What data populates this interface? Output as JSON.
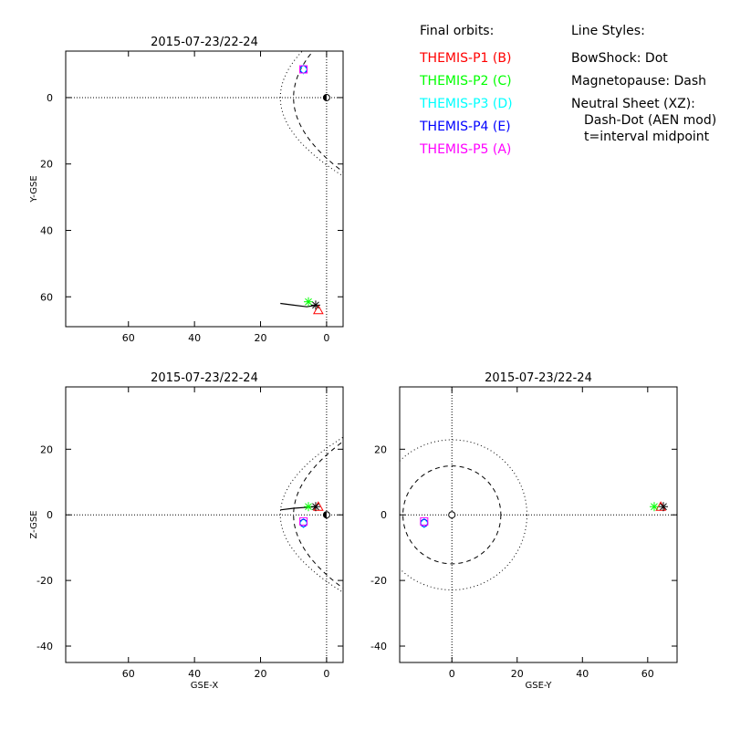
{
  "legend": {
    "orbits_heading": "Final orbits:",
    "styles_heading": "Line Styles:",
    "probes": [
      {
        "label": "THEMIS-P1 (B)",
        "color": "#ff0000"
      },
      {
        "label": "THEMIS-P2 (C)",
        "color": "#00ff00"
      },
      {
        "label": "THEMIS-P3 (D)",
        "color": "#00ffff"
      },
      {
        "label": "THEMIS-P4 (E)",
        "color": "#0000ff"
      },
      {
        "label": "THEMIS-P5 (A)",
        "color": "#ff00ff"
      }
    ],
    "styles": [
      "BowShock: Dot",
      "Magnetopause: Dash",
      "Neutral Sheet (XZ):",
      "Dash-Dot (AEN mod)",
      "t=interval midpoint"
    ]
  },
  "chart_data": [
    {
      "type": "scatter",
      "panel": "XY",
      "title": "2015-07-23/22-24",
      "xlabel": "",
      "ylabel": "Y-GSE",
      "xlim": [
        79,
        -5
      ],
      "ylim": [
        -14,
        69
      ],
      "xticks": [
        60,
        40,
        20,
        0
      ],
      "yticks": [
        0,
        20,
        40,
        60
      ],
      "series": [
        {
          "name": "THEMIS-P1 (B)",
          "color": "#ff0000",
          "x": [
            2.5
          ],
          "y": [
            64
          ],
          "marker": "triangle"
        },
        {
          "name": "THEMIS-P2 (C)",
          "color": "#00ff00",
          "x": [
            5.5
          ],
          "y": [
            61.5
          ],
          "marker": "asterisk"
        },
        {
          "name": "THEMIS-P3 (D)",
          "color": "#00ffff",
          "x": [
            7
          ],
          "y": [
            -8.5
          ],
          "marker": "diamond"
        },
        {
          "name": "THEMIS-P4 (E)",
          "color": "#0000ff",
          "x": [
            7
          ],
          "y": [
            -8.5
          ],
          "marker": "circle"
        },
        {
          "name": "THEMIS-P5 (A)",
          "color": "#ff00ff",
          "x": [
            7
          ],
          "y": [
            -8.5
          ],
          "marker": "square"
        }
      ],
      "orbit_path": {
        "x": [
          14,
          10,
          6,
          3
        ],
        "y": [
          62,
          62.5,
          63,
          62.5
        ]
      }
    },
    {
      "type": "scatter",
      "panel": "XZ",
      "title": "2015-07-23/22-24",
      "xlabel": "GSE-X",
      "ylabel": "Z-GSE",
      "xlim": [
        79,
        -5
      ],
      "ylim": [
        -45,
        39
      ],
      "xticks": [
        60,
        40,
        20,
        0
      ],
      "yticks": [
        20,
        0,
        -20,
        -40
      ],
      "series": [
        {
          "name": "THEMIS-P1 (B)",
          "color": "#ff0000",
          "x": [
            2.5
          ],
          "y": [
            2.5
          ],
          "marker": "triangle"
        },
        {
          "name": "THEMIS-P2 (C)",
          "color": "#00ff00",
          "x": [
            5.5
          ],
          "y": [
            2.5
          ],
          "marker": "asterisk"
        },
        {
          "name": "THEMIS-P3 (D)",
          "color": "#00ffff",
          "x": [
            7
          ],
          "y": [
            -2.5
          ],
          "marker": "diamond"
        },
        {
          "name": "THEMIS-P4 (E)",
          "color": "#0000ff",
          "x": [
            7
          ],
          "y": [
            -2.5
          ],
          "marker": "circle"
        },
        {
          "name": "THEMIS-P5 (A)",
          "color": "#ff00ff",
          "x": [
            7
          ],
          "y": [
            -2
          ],
          "marker": "square"
        }
      ],
      "orbit_path": {
        "x": [
          14,
          10,
          6,
          3
        ],
        "y": [
          1.5,
          2,
          2.3,
          2.5
        ]
      }
    },
    {
      "type": "scatter",
      "panel": "YZ",
      "title": "2015-07-23/22-24",
      "xlabel": "GSE-Y",
      "ylabel": "",
      "xlim": [
        -16,
        69
      ],
      "ylim": [
        -45,
        39
      ],
      "xticks": [
        0,
        20,
        40,
        60
      ],
      "yticks": [
        20,
        0,
        -20,
        -40
      ],
      "series": [
        {
          "name": "THEMIS-P1 (B)",
          "color": "#ff0000",
          "x": [
            64
          ],
          "y": [
            2.5
          ],
          "marker": "triangle"
        },
        {
          "name": "THEMIS-P2 (C)",
          "color": "#00ff00",
          "x": [
            62
          ],
          "y": [
            2.5
          ],
          "marker": "asterisk"
        },
        {
          "name": "THEMIS-P3 (D)",
          "color": "#00ffff",
          "x": [
            -8.5
          ],
          "y": [
            -2.5
          ],
          "marker": "diamond"
        },
        {
          "name": "THEMIS-P4 (E)",
          "color": "#0000ff",
          "x": [
            -8.5
          ],
          "y": [
            -2.5
          ],
          "marker": "circle"
        },
        {
          "name": "THEMIS-P5 (A)",
          "color": "#ff00ff",
          "x": [
            -8.5
          ],
          "y": [
            -2
          ],
          "marker": "square"
        }
      ],
      "magnetopause_radius": 15,
      "bowshock_radius": 23
    }
  ]
}
